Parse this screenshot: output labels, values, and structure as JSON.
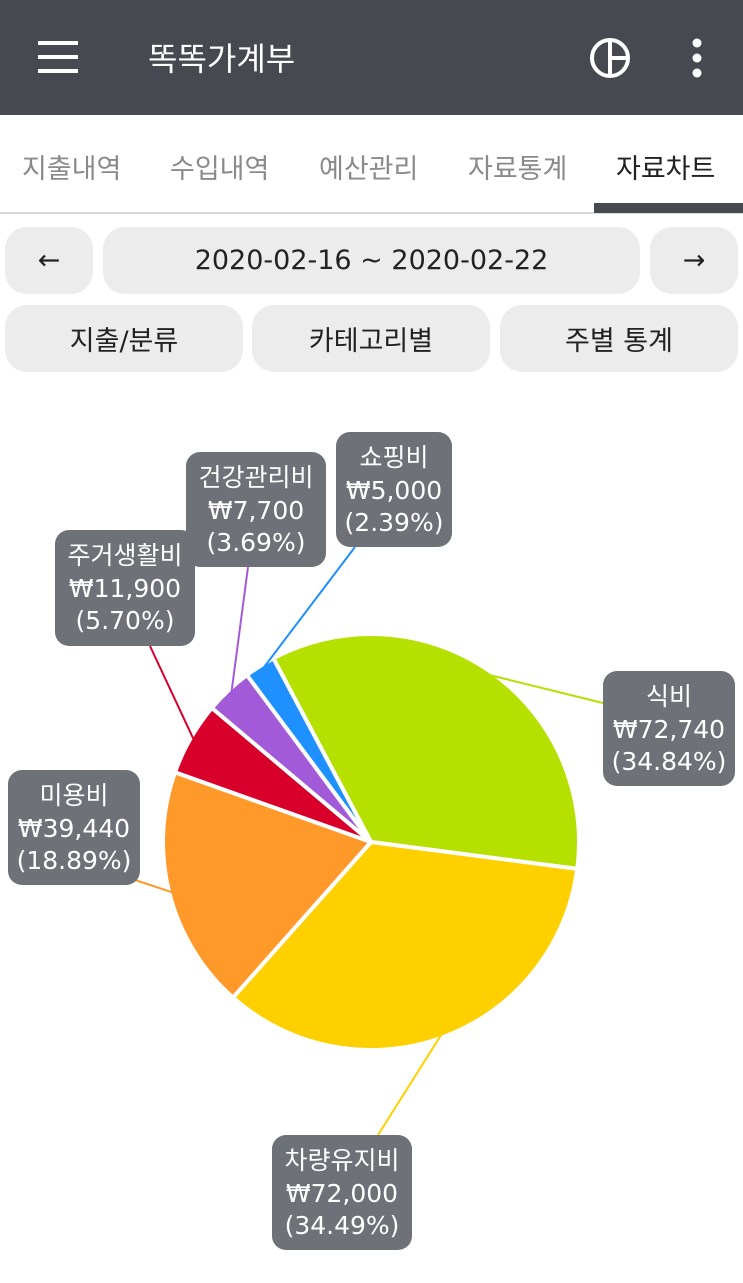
{
  "header": {
    "title": "똑똑가계부"
  },
  "tabs": [
    "지출내역",
    "수입내역",
    "예산관리",
    "자료통계",
    "자료차트"
  ],
  "date_nav": {
    "prev": "←",
    "range": "2020-02-16 ~ 2020-02-22",
    "next": "→"
  },
  "view_buttons": [
    "지출/분류",
    "카테고리별",
    "주별 통계"
  ],
  "chart_data": {
    "type": "pie",
    "categories": [
      "식비",
      "차량유지비",
      "미용비",
      "주거생활비",
      "건강관리비",
      "쇼핑비"
    ],
    "values": [
      72740,
      72000,
      39440,
      11900,
      7700,
      5000
    ],
    "value_labels": [
      "₩72,740",
      "₩72,000",
      "₩39,440",
      "₩11,900",
      "₩7,700",
      "₩5,000"
    ],
    "percent_labels": [
      "(34.84%)",
      "(34.49%)",
      "(18.89%)",
      "(5.70%)",
      "(3.69%)",
      "(2.39%)"
    ],
    "colors": [
      "#b5e000",
      "#ffd000",
      "#ff9a2a",
      "#d8002b",
      "#a25ad9",
      "#1e90ff"
    ]
  }
}
